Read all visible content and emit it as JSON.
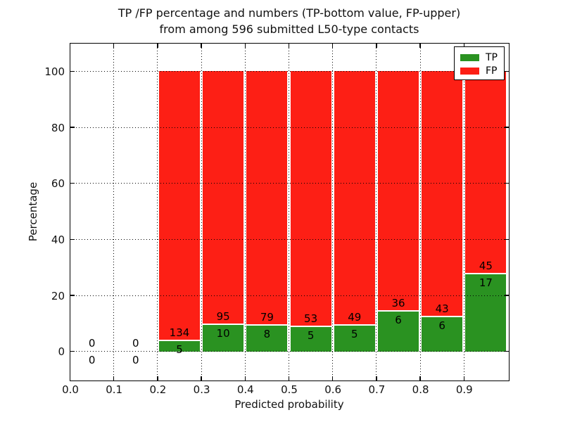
{
  "figure": {
    "title_line1": "TP /FP percentage and numbers (TP-bottom value, FP-upper)",
    "title_line2": "from among 596 submitted L50-type contacts",
    "xlabel": "Predicted probability",
    "ylabel": "Percentage"
  },
  "legend": {
    "items": [
      {
        "label": "TP",
        "color": "#2a9221"
      },
      {
        "label": "FP",
        "color": "#fd1f15"
      }
    ],
    "position": "upper right"
  },
  "colors": {
    "tp": "#2a9221",
    "fp": "#fd1f15",
    "background": "#ffffff",
    "grid": "#000000",
    "text": "#000000"
  },
  "chart_data": {
    "type": "bar",
    "stacked": true,
    "normalized_to_percent": true,
    "title": "TP /FP percentage and numbers (TP-bottom value, FP-upper) from among 596 submitted L50-type contacts",
    "xlabel": "Predicted probability",
    "ylabel": "Percentage",
    "xlim": [
      0.0,
      1.0
    ],
    "ylim": [
      -10,
      110
    ],
    "yticks": [
      0,
      20,
      40,
      60,
      80,
      100
    ],
    "xticks": [
      0.0,
      0.1,
      0.2,
      0.3,
      0.4,
      0.5,
      0.6,
      0.7,
      0.8,
      0.9
    ],
    "xtick_labels": [
      "0.0",
      "0.1",
      "0.2",
      "0.3",
      "0.4",
      "0.5",
      "0.6",
      "0.7",
      "0.8",
      "0.9"
    ],
    "grid": true,
    "grid_style": "dotted",
    "legend_position": "upper right",
    "total_contacts": 596,
    "bin_width": 0.1,
    "categories": [
      "0.0-0.1",
      "0.1-0.2",
      "0.2-0.3",
      "0.3-0.4",
      "0.4-0.5",
      "0.5-0.6",
      "0.6-0.7",
      "0.7-0.8",
      "0.8-0.9",
      "0.9-1.0"
    ],
    "series": [
      {
        "name": "TP",
        "color": "#2a9221",
        "values": [
          0,
          0,
          5,
          10,
          8,
          5,
          5,
          6,
          6,
          17
        ]
      },
      {
        "name": "FP",
        "color": "#fd1f15",
        "values": [
          0,
          0,
          134,
          95,
          79,
          53,
          49,
          36,
          43,
          45
        ]
      }
    ],
    "bins": [
      {
        "x_start": 0.0,
        "x_end": 0.1,
        "tp": 0,
        "fp": 0
      },
      {
        "x_start": 0.1,
        "x_end": 0.2,
        "tp": 0,
        "fp": 0
      },
      {
        "x_start": 0.2,
        "x_end": 0.3,
        "tp": 5,
        "fp": 134
      },
      {
        "x_start": 0.3,
        "x_end": 0.4,
        "tp": 10,
        "fp": 95
      },
      {
        "x_start": 0.4,
        "x_end": 0.5,
        "tp": 8,
        "fp": 79
      },
      {
        "x_start": 0.5,
        "x_end": 0.6,
        "tp": 5,
        "fp": 53
      },
      {
        "x_start": 0.6,
        "x_end": 0.7,
        "tp": 5,
        "fp": 49
      },
      {
        "x_start": 0.7,
        "x_end": 0.8,
        "tp": 6,
        "fp": 36
      },
      {
        "x_start": 0.8,
        "x_end": 0.9,
        "tp": 6,
        "fp": 43
      },
      {
        "x_start": 0.9,
        "x_end": 1.0,
        "tp": 17,
        "fp": 45
      }
    ]
  }
}
